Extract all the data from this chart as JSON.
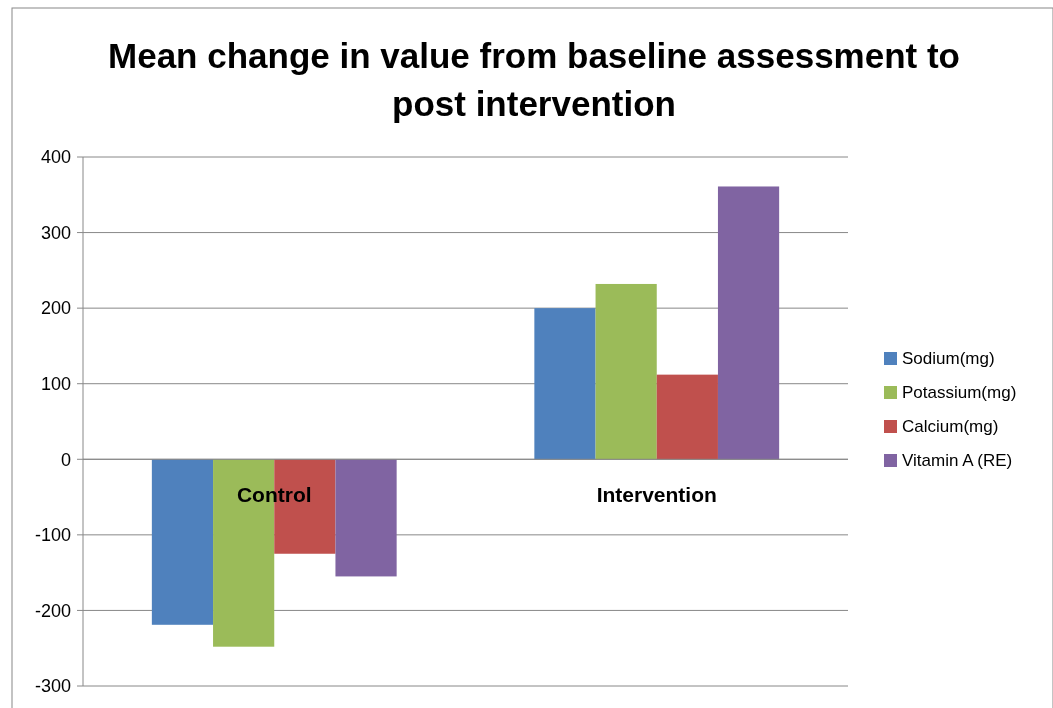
{
  "chart_data": {
    "type": "bar",
    "title": "Mean change in value from baseline assessment to post intervention",
    "categories": [
      "Control",
      "Intervention"
    ],
    "series": [
      {
        "name": "Sodium(mg)",
        "color": "#4f81bd",
        "values": [
          -219,
          200
        ]
      },
      {
        "name": "Potassium(mg)",
        "color": "#9bbb59",
        "values": [
          -248,
          232
        ]
      },
      {
        "name": "Calcium(mg)",
        "color": "#c0504d",
        "values": [
          -125,
          112
        ]
      },
      {
        "name": "Vitamin A (RE)",
        "color": "#8064a2",
        "values": [
          -155,
          361
        ]
      }
    ],
    "ylim": [
      -300,
      400
    ],
    "yticks": [
      -300,
      -200,
      -100,
      0,
      100,
      200,
      300,
      400
    ],
    "grid": "y",
    "legend": "right"
  }
}
